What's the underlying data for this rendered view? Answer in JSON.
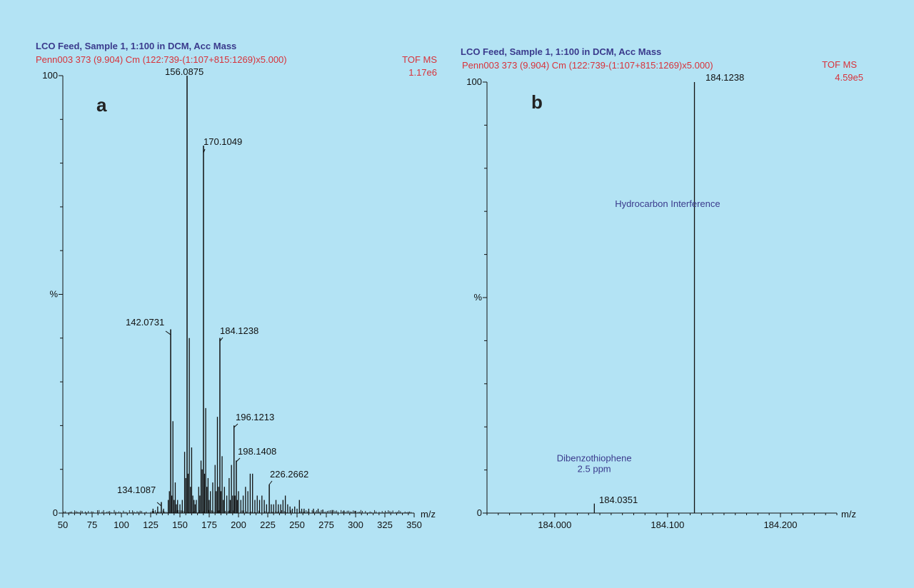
{
  "chart_data": [
    {
      "type": "bar",
      "panel_label": "a",
      "title": "LCO Feed, Sample 1, 1:100 in DCM, Acc Mass",
      "subtitle": "Penn003 373 (9.904) Cm (122:739-(1:107+815:1269)x5.000)",
      "instrument": "TOF MS",
      "intensity": "1.17e6",
      "xlabel": "m/z",
      "ylabel": "%",
      "xlim": [
        50,
        350
      ],
      "ylim": [
        0,
        100
      ],
      "xticks": [
        50,
        75,
        100,
        125,
        150,
        175,
        200,
        225,
        250,
        275,
        300,
        325,
        350
      ],
      "yticks": [
        {
          "value": 0,
          "label": "0"
        },
        {
          "value": 50,
          "label": "%"
        },
        {
          "value": 100,
          "label": "100"
        }
      ],
      "labeled_peaks": [
        {
          "x": 134.1087,
          "y": 2.5,
          "label": "134.1087"
        },
        {
          "x": 142.0731,
          "y": 42,
          "label": "142.0731"
        },
        {
          "x": 156.0875,
          "y": 100,
          "label": "156.0875"
        },
        {
          "x": 170.1049,
          "y": 84,
          "label": "170.1049"
        },
        {
          "x": 184.1238,
          "y": 40,
          "label": "184.1238"
        },
        {
          "x": 196.1213,
          "y": 20,
          "label": "196.1213"
        },
        {
          "x": 198.1408,
          "y": 12,
          "label": "198.1408"
        },
        {
          "x": 226.2662,
          "y": 6.5,
          "label": "226.2662"
        }
      ],
      "peaks": [
        {
          "x": 127,
          "y": 1
        },
        {
          "x": 131,
          "y": 1.5
        },
        {
          "x": 134.1,
          "y": 2.5
        },
        {
          "x": 136,
          "y": 1
        },
        {
          "x": 140,
          "y": 3
        },
        {
          "x": 141,
          "y": 5
        },
        {
          "x": 142.07,
          "y": 42
        },
        {
          "x": 143,
          "y": 4
        },
        {
          "x": 144,
          "y": 21
        },
        {
          "x": 145,
          "y": 3
        },
        {
          "x": 146,
          "y": 7
        },
        {
          "x": 147,
          "y": 2
        },
        {
          "x": 148,
          "y": 3
        },
        {
          "x": 150,
          "y": 2
        },
        {
          "x": 152,
          "y": 3
        },
        {
          "x": 154,
          "y": 14
        },
        {
          "x": 155,
          "y": 8
        },
        {
          "x": 156.09,
          "y": 100
        },
        {
          "x": 157,
          "y": 9
        },
        {
          "x": 158,
          "y": 40
        },
        {
          "x": 159,
          "y": 6
        },
        {
          "x": 160,
          "y": 15
        },
        {
          "x": 161,
          "y": 4
        },
        {
          "x": 162,
          "y": 3
        },
        {
          "x": 163,
          "y": 2
        },
        {
          "x": 164,
          "y": 3
        },
        {
          "x": 166,
          "y": 6
        },
        {
          "x": 167,
          "y": 4
        },
        {
          "x": 168,
          "y": 12
        },
        {
          "x": 169,
          "y": 10
        },
        {
          "x": 170.1,
          "y": 84
        },
        {
          "x": 171,
          "y": 9
        },
        {
          "x": 172,
          "y": 24
        },
        {
          "x": 173,
          "y": 6
        },
        {
          "x": 174,
          "y": 8
        },
        {
          "x": 175,
          "y": 3
        },
        {
          "x": 176,
          "y": 5
        },
        {
          "x": 178,
          "y": 7
        },
        {
          "x": 180,
          "y": 11
        },
        {
          "x": 181,
          "y": 5
        },
        {
          "x": 182,
          "y": 22
        },
        {
          "x": 183,
          "y": 6
        },
        {
          "x": 184.12,
          "y": 40
        },
        {
          "x": 185,
          "y": 5
        },
        {
          "x": 186,
          "y": 13
        },
        {
          "x": 187,
          "y": 3
        },
        {
          "x": 188,
          "y": 6
        },
        {
          "x": 190,
          "y": 4
        },
        {
          "x": 192,
          "y": 8
        },
        {
          "x": 193,
          "y": 3
        },
        {
          "x": 194,
          "y": 11
        },
        {
          "x": 195,
          "y": 4
        },
        {
          "x": 196.12,
          "y": 20
        },
        {
          "x": 197,
          "y": 4
        },
        {
          "x": 198.14,
          "y": 12
        },
        {
          "x": 199,
          "y": 3
        },
        {
          "x": 200,
          "y": 5
        },
        {
          "x": 202,
          "y": 3
        },
        {
          "x": 204,
          "y": 4
        },
        {
          "x": 206,
          "y": 6
        },
        {
          "x": 208,
          "y": 5
        },
        {
          "x": 210,
          "y": 9
        },
        {
          "x": 212,
          "y": 9
        },
        {
          "x": 214,
          "y": 3
        },
        {
          "x": 216,
          "y": 4
        },
        {
          "x": 218,
          "y": 3
        },
        {
          "x": 220,
          "y": 4
        },
        {
          "x": 222,
          "y": 3
        },
        {
          "x": 224,
          "y": 2
        },
        {
          "x": 226.27,
          "y": 6.5
        },
        {
          "x": 228,
          "y": 2
        },
        {
          "x": 230,
          "y": 2
        },
        {
          "x": 232,
          "y": 3
        },
        {
          "x": 234,
          "y": 2
        },
        {
          "x": 236,
          "y": 2
        },
        {
          "x": 238,
          "y": 3
        },
        {
          "x": 240,
          "y": 4
        },
        {
          "x": 242,
          "y": 2
        },
        {
          "x": 244,
          "y": 1.5
        },
        {
          "x": 246,
          "y": 1
        },
        {
          "x": 248,
          "y": 1.5
        },
        {
          "x": 250,
          "y": 1
        },
        {
          "x": 252,
          "y": 3
        },
        {
          "x": 254,
          "y": 1
        },
        {
          "x": 256,
          "y": 1
        },
        {
          "x": 260,
          "y": 1
        },
        {
          "x": 264,
          "y": 1
        },
        {
          "x": 268,
          "y": 1
        },
        {
          "x": 272,
          "y": 0.8
        },
        {
          "x": 280,
          "y": 0.7
        },
        {
          "x": 290,
          "y": 0.6
        },
        {
          "x": 300,
          "y": 0.5
        }
      ]
    },
    {
      "type": "bar",
      "panel_label": "b",
      "title": "LCO Feed, Sample 1, 1:100 in DCM, Acc Mass",
      "subtitle": "Penn003 373 (9.904) Cm (122:739-(1:107+815:1269)x5.000)",
      "instrument": "TOF MS",
      "intensity": "4.59e5",
      "xlabel": "m/z",
      "ylabel": "%",
      "xlim": [
        183.94,
        184.25
      ],
      "ylim": [
        0,
        100
      ],
      "xticks": [
        {
          "value": 184.0,
          "label": "184.000"
        },
        {
          "value": 184.1,
          "label": "184.100"
        },
        {
          "value": 184.2,
          "label": "184.200"
        }
      ],
      "yticks": [
        {
          "value": 0,
          "label": "0"
        },
        {
          "value": 50,
          "label": "%"
        },
        {
          "value": 100,
          "label": "100"
        }
      ],
      "labeled_peaks": [
        {
          "x": 184.0351,
          "y": 2.2,
          "label": "184.0351"
        },
        {
          "x": 184.1238,
          "y": 100,
          "label": "184.1238"
        }
      ],
      "annotations": [
        {
          "x": 184.1,
          "y": 71,
          "text": "Hydrocarbon Interference"
        },
        {
          "x": 184.035,
          "y": 12,
          "text": "Dibenzothiophene"
        },
        {
          "x": 184.035,
          "y": 9.5,
          "text": "2.5 ppm"
        }
      ]
    }
  ]
}
